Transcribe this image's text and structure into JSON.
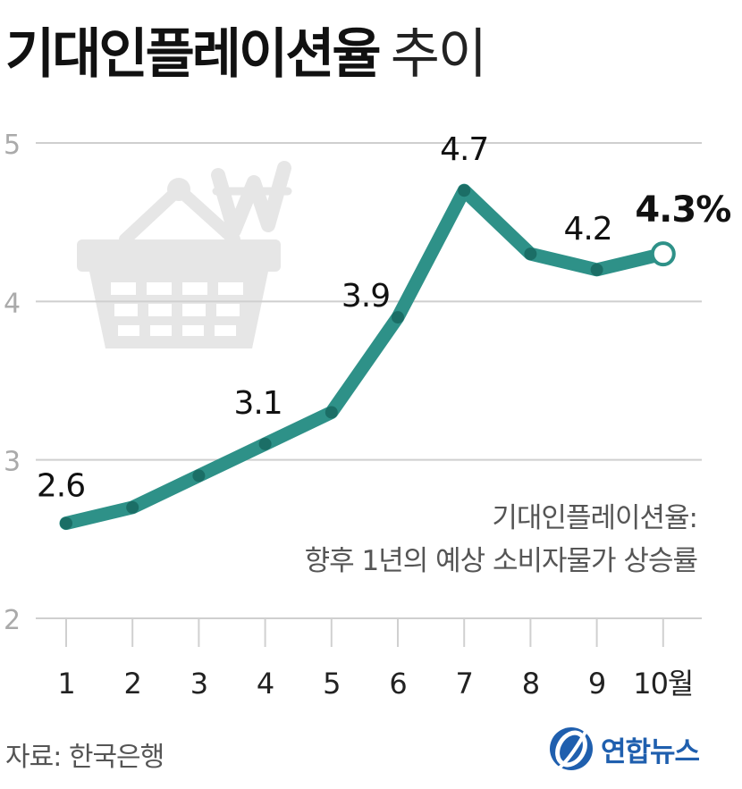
{
  "title": {
    "main": "기대인플레이션율",
    "sub": "추이"
  },
  "chart_data": {
    "type": "line",
    "categories": [
      "1",
      "2",
      "3",
      "4",
      "5",
      "6",
      "7",
      "8",
      "9",
      "10월"
    ],
    "series": [
      {
        "values": [
          2.6,
          2.7,
          2.9,
          3.1,
          3.3,
          3.9,
          4.7,
          4.3,
          4.2,
          4.3
        ]
      }
    ],
    "data_labels": [
      {
        "index": 0,
        "text": "2.6"
      },
      {
        "index": 3,
        "text": "3.1"
      },
      {
        "index": 5,
        "text": "3.9"
      },
      {
        "index": 6,
        "text": "4.7"
      },
      {
        "index": 8,
        "text": "4.2"
      },
      {
        "index": 9,
        "text": "4.3%"
      }
    ],
    "yticks": [
      2,
      3,
      4,
      5
    ],
    "ytick_labels": [
      "2",
      "3",
      "4",
      "5"
    ],
    "ylim": [
      2,
      5
    ],
    "grid": true,
    "line_color": "#2e9188",
    "annotation": [
      "기대인플레이션율:",
      "향후 1년의 예상 소비자물가 상승률"
    ]
  },
  "decoration": {
    "illustration": "shopping-basket-with-won-sign-icon",
    "color": "#e5e5e5"
  },
  "footer": {
    "source": "자료: 한국은행",
    "logo_text": "연합뉴스",
    "logo_icon": "yonhap-logo-icon",
    "logo_color": "#1f5fae"
  }
}
